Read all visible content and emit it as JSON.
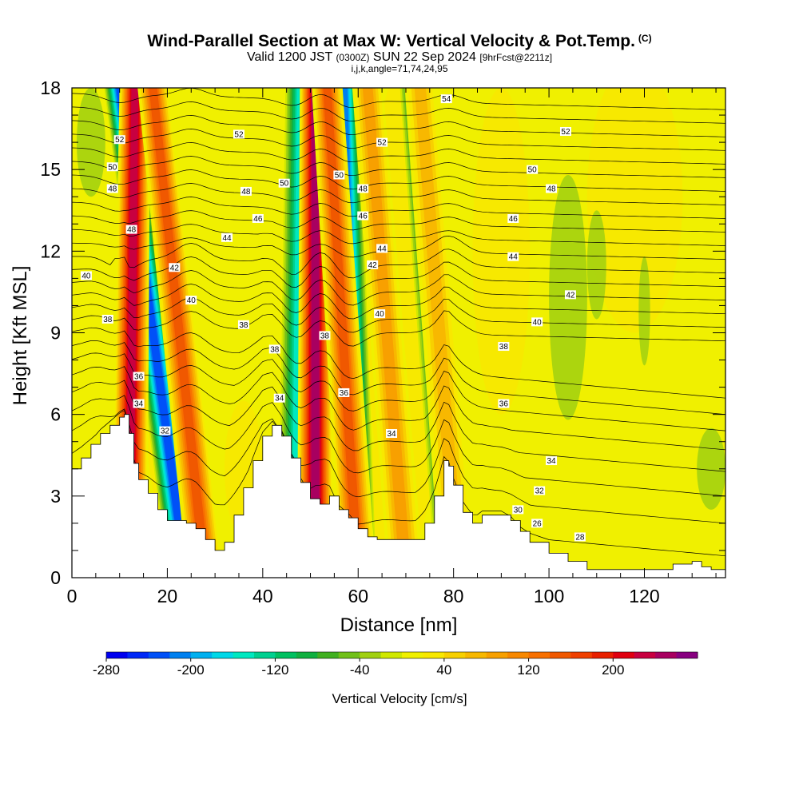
{
  "title": {
    "main": "Wind-Parallel Section at Max W: Vertical Velocity & Pot.Temp.",
    "copyright": "(C)",
    "valid_prefix": "Valid 1200 JST",
    "valid_utc": "(0300Z)",
    "valid_date": "SUN 22 Sep 2024",
    "forecast": "[9hrFcst@2211z]",
    "indices": "i,j,k,angle=71,74,24,95"
  },
  "chart_data": {
    "type": "heatmap",
    "xlabel": "Distance [nm]",
    "ylabel": "Height [Kft MSL]",
    "xlim": [
      0,
      137
    ],
    "ylim": [
      0,
      18
    ],
    "x_ticks": [
      "0",
      "20",
      "40",
      "60",
      "80",
      "100",
      "120"
    ],
    "y_ticks": [
      "0",
      "3",
      "6",
      "9",
      "12",
      "15",
      "18"
    ],
    "terrain_kft": [
      [
        0,
        4.0
      ],
      [
        2,
        4.4
      ],
      [
        4,
        4.9
      ],
      [
        6,
        5.3
      ],
      [
        8,
        5.6
      ],
      [
        10,
        5.9
      ],
      [
        11,
        6.0
      ],
      [
        12,
        5.3
      ],
      [
        13,
        4.2
      ],
      [
        14,
        3.6
      ],
      [
        16,
        3.1
      ],
      [
        18,
        2.5
      ],
      [
        20,
        2.1
      ],
      [
        24,
        2.0
      ],
      [
        26,
        1.8
      ],
      [
        28,
        1.4
      ],
      [
        30,
        1.0
      ],
      [
        32,
        1.3
      ],
      [
        34,
        2.3
      ],
      [
        36,
        3.3
      ],
      [
        38,
        4.3
      ],
      [
        40,
        5.2
      ],
      [
        42,
        5.6
      ],
      [
        44,
        5.2
      ],
      [
        46,
        4.4
      ],
      [
        48,
        3.5
      ],
      [
        50,
        2.9
      ],
      [
        52,
        2.7
      ],
      [
        54,
        3.0
      ],
      [
        56,
        2.5
      ],
      [
        58,
        2.2
      ],
      [
        60,
        1.8
      ],
      [
        62,
        1.5
      ],
      [
        64,
        1.4
      ],
      [
        66,
        1.4
      ],
      [
        70,
        1.4
      ],
      [
        72,
        1.4
      ],
      [
        74,
        2.0
      ],
      [
        76,
        3.0
      ],
      [
        78,
        4.3
      ],
      [
        79,
        4.1
      ],
      [
        80,
        3.4
      ],
      [
        82,
        2.4
      ],
      [
        84,
        2.0
      ],
      [
        86,
        2.3
      ],
      [
        90,
        2.3
      ],
      [
        92,
        2.1
      ],
      [
        94,
        1.7
      ],
      [
        96,
        1.3
      ],
      [
        100,
        0.9
      ],
      [
        104,
        0.6
      ],
      [
        108,
        0.3
      ],
      [
        112,
        0.3
      ],
      [
        118,
        0.3
      ],
      [
        122,
        0.3
      ],
      [
        124,
        0.3
      ],
      [
        126,
        0.5
      ],
      [
        130,
        0.6
      ],
      [
        132,
        0.4
      ],
      [
        134,
        0.3
      ],
      [
        137,
        0.3
      ]
    ],
    "updrafts_cms": [
      {
        "x_bottom": 12,
        "x_top": 13.2,
        "peak": 240
      },
      {
        "x_bottom": 28,
        "x_top": 17,
        "peak": 150
      },
      {
        "x_bottom": 51,
        "x_top": 51,
        "peak": 260
      },
      {
        "x_bottom": 60,
        "x_top": 53.5,
        "peak": 160
      },
      {
        "x_bottom": 70,
        "x_top": 62,
        "peak": 90
      },
      {
        "x_bottom": 81,
        "x_top": 73,
        "peak": 70
      }
    ],
    "downdrafts_cms": [
      {
        "x_bottom": 24,
        "x_top": 10,
        "peak": -240
      },
      {
        "x_bottom": 47,
        "x_top": 48,
        "peak": -160
      },
      {
        "x_bottom": 60,
        "x_top": 57,
        "peak": -220
      },
      {
        "x_bottom": 80,
        "x_top": 72,
        "peak": -160
      }
    ],
    "isentropes_kft_at_x0": [
      3.0,
      4.2,
      5.2,
      6.1,
      6.9,
      7.6,
      8.2,
      8.8,
      9.3,
      9.8,
      10.3,
      10.8,
      11.3,
      11.8,
      12.3,
      12.8,
      13.3,
      13.8,
      14.3,
      14.8,
      15.3,
      15.8,
      16.3,
      16.8,
      17.3,
      17.8
    ],
    "isentrope_labels": [
      {
        "text": "26",
        "x": 97.5,
        "y": 2.0
      },
      {
        "text": "28",
        "x": 106.5,
        "y": 1.5
      },
      {
        "text": "30",
        "x": 93.5,
        "y": 2.5
      },
      {
        "text": "32",
        "x": 19.5,
        "y": 5.4
      },
      {
        "text": "32",
        "x": 98,
        "y": 3.2
      },
      {
        "text": "34",
        "x": 14,
        "y": 6.4
      },
      {
        "text": "34",
        "x": 43.5,
        "y": 6.6
      },
      {
        "text": "34",
        "x": 67,
        "y": 5.3
      },
      {
        "text": "34",
        "x": 100.5,
        "y": 4.3
      },
      {
        "text": "36",
        "x": 14,
        "y": 7.4
      },
      {
        "text": "36",
        "x": 57,
        "y": 6.8
      },
      {
        "text": "36",
        "x": 90.5,
        "y": 6.4
      },
      {
        "text": "38",
        "x": 7.5,
        "y": 9.5
      },
      {
        "text": "38",
        "x": 36,
        "y": 9.3
      },
      {
        "text": "38",
        "x": 42.5,
        "y": 8.4
      },
      {
        "text": "38",
        "x": 53,
        "y": 8.9
      },
      {
        "text": "38",
        "x": 90.5,
        "y": 8.5
      },
      {
        "text": "40",
        "x": 3,
        "y": 11.1
      },
      {
        "text": "40",
        "x": 25,
        "y": 10.2
      },
      {
        "text": "40",
        "x": 64.5,
        "y": 9.7
      },
      {
        "text": "40",
        "x": 97.5,
        "y": 9.4
      },
      {
        "text": "42",
        "x": 21.5,
        "y": 11.4
      },
      {
        "text": "42",
        "x": 63,
        "y": 11.5
      },
      {
        "text": "42",
        "x": 104.5,
        "y": 10.4
      },
      {
        "text": "44",
        "x": 32.5,
        "y": 12.5
      },
      {
        "text": "44",
        "x": 65,
        "y": 12.1
      },
      {
        "text": "44",
        "x": 92.5,
        "y": 11.8
      },
      {
        "text": "46",
        "x": 39,
        "y": 13.2
      },
      {
        "text": "46",
        "x": 61,
        "y": 13.3
      },
      {
        "text": "46",
        "x": 92.5,
        "y": 13.2
      },
      {
        "text": "48",
        "x": 8.5,
        "y": 14.3
      },
      {
        "text": "48",
        "x": 36.5,
        "y": 14.2
      },
      {
        "text": "48",
        "x": 61,
        "y": 14.3
      },
      {
        "text": "48",
        "x": 100.5,
        "y": 14.3
      },
      {
        "text": "48",
        "x": 12.5,
        "y": 12.8
      },
      {
        "text": "50",
        "x": 8.5,
        "y": 15.1
      },
      {
        "text": "50",
        "x": 44.5,
        "y": 14.5
      },
      {
        "text": "50",
        "x": 56,
        "y": 14.8
      },
      {
        "text": "50",
        "x": 96.5,
        "y": 15.0
      },
      {
        "text": "52",
        "x": 10,
        "y": 16.1
      },
      {
        "text": "52",
        "x": 35,
        "y": 16.3
      },
      {
        "text": "52",
        "x": 65,
        "y": 16.0
      },
      {
        "text": "52",
        "x": 103.5,
        "y": 16.4
      },
      {
        "text": "54",
        "x": 78.5,
        "y": 17.6
      }
    ]
  },
  "colorbar": {
    "title": "Vertical Velocity [cm/s]",
    "min": -280,
    "max": 280,
    "step": 20,
    "tick_labels": [
      {
        "text": "-280",
        "value": -280
      },
      {
        "text": "-200",
        "value": -200
      },
      {
        "text": "-120",
        "value": -120
      },
      {
        "text": "-40",
        "value": -40
      },
      {
        "text": "40",
        "value": 40
      },
      {
        "text": "120",
        "value": 120
      },
      {
        "text": "200",
        "value": 200
      }
    ],
    "colors": [
      "#0000f0",
      "#0028f8",
      "#0050f8",
      "#0080f0",
      "#00b0f0",
      "#00d8e8",
      "#00e8c0",
      "#00d090",
      "#00c060",
      "#10b040",
      "#40b020",
      "#70c018",
      "#a0d010",
      "#d0e800",
      "#f0f000",
      "#f8e800",
      "#f8d000",
      "#f8b800",
      "#f8a000",
      "#f88800",
      "#f87000",
      "#f05800",
      "#f04000",
      "#e82000",
      "#e00010",
      "#c80040",
      "#a80060",
      "#880080"
    ]
  }
}
